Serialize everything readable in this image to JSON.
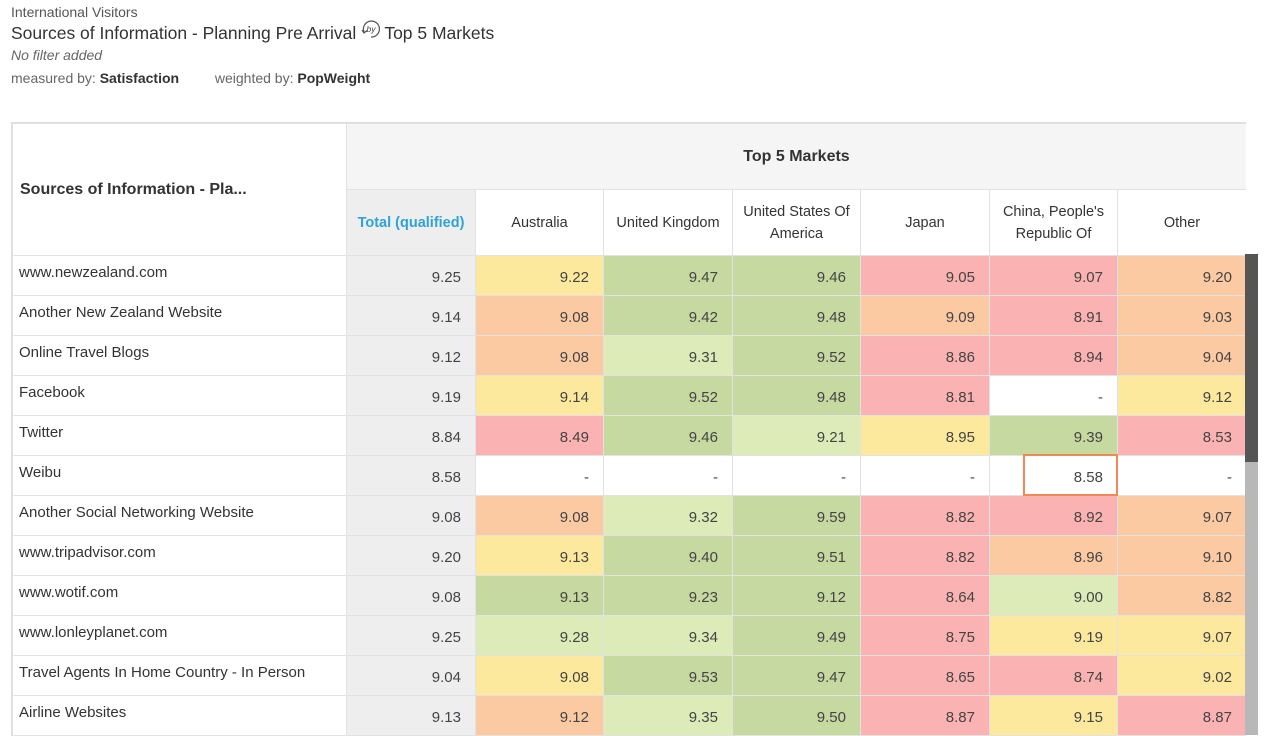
{
  "header": {
    "supertitle": "International Visitors",
    "title_left": "Sources of Information - Planning Pre Arrival",
    "by_icon_text": "by",
    "title_right": "Top 5 Markets",
    "filter": "No filter added",
    "measured_label": "measured by:",
    "measured_value": "Satisfaction",
    "weighted_label": "weighted by:",
    "weighted_value": "PopWeight"
  },
  "table": {
    "row_header": "Sources of Information - Pla...",
    "group_header": "Top 5 Markets",
    "columns": [
      "Total (qualified)",
      "Australia",
      "United Kingdom",
      "United States Of America",
      "Japan",
      "China, People's Republic Of",
      "Other"
    ],
    "rows": [
      {
        "label": "www.newzealand.com",
        "values": [
          "9.25",
          "9.22",
          "9.47",
          "9.46",
          "9.05",
          "9.07",
          "9.20"
        ],
        "colors": [
          "t",
          "y",
          "g",
          "g",
          "r",
          "r",
          "o"
        ]
      },
      {
        "label": "Another New Zealand Website",
        "values": [
          "9.14",
          "9.08",
          "9.42",
          "9.48",
          "9.09",
          "8.91",
          "9.03"
        ],
        "colors": [
          "t",
          "o",
          "g",
          "g",
          "o",
          "r",
          "o"
        ]
      },
      {
        "label": "Online Travel Blogs",
        "values": [
          "9.12",
          "9.08",
          "9.31",
          "9.52",
          "8.86",
          "8.94",
          "9.04"
        ],
        "colors": [
          "t",
          "o",
          "lg",
          "g",
          "r",
          "r",
          "o"
        ]
      },
      {
        "label": "Facebook",
        "values": [
          "9.19",
          "9.14",
          "9.52",
          "9.48",
          "8.81",
          "-",
          "9.12"
        ],
        "colors": [
          "t",
          "y",
          "g",
          "g",
          "r",
          "w",
          "y"
        ]
      },
      {
        "label": "Twitter",
        "values": [
          "8.84",
          "8.49",
          "9.46",
          "9.21",
          "8.95",
          "9.39",
          "8.53"
        ],
        "colors": [
          "t",
          "r",
          "g",
          "lg",
          "y",
          "g",
          "r"
        ]
      },
      {
        "label": "Weibu",
        "values": [
          "8.58",
          "-",
          "-",
          "-",
          "-",
          "8.58",
          "-"
        ],
        "colors": [
          "t",
          "w",
          "w",
          "w",
          "w",
          "w",
          "w"
        ]
      },
      {
        "label": "Another Social Networking Website",
        "values": [
          "9.08",
          "9.08",
          "9.32",
          "9.59",
          "8.82",
          "8.92",
          "9.07"
        ],
        "colors": [
          "t",
          "o",
          "lg",
          "g",
          "r",
          "r",
          "o"
        ]
      },
      {
        "label": "www.tripadvisor.com",
        "values": [
          "9.20",
          "9.13",
          "9.40",
          "9.51",
          "8.82",
          "8.96",
          "9.10"
        ],
        "colors": [
          "t",
          "y",
          "g",
          "g",
          "r",
          "o",
          "o"
        ]
      },
      {
        "label": "www.wotif.com",
        "values": [
          "9.08",
          "9.13",
          "9.23",
          "9.12",
          "8.64",
          "9.00",
          "8.82"
        ],
        "colors": [
          "t",
          "g",
          "g",
          "g",
          "r",
          "lg",
          "o"
        ]
      },
      {
        "label": "www.lonleyplanet.com",
        "values": [
          "9.25",
          "9.28",
          "9.34",
          "9.49",
          "8.75",
          "9.19",
          "9.07"
        ],
        "colors": [
          "t",
          "lg",
          "lg",
          "g",
          "r",
          "y",
          "y"
        ]
      },
      {
        "label": "Travel Agents In Home Country - In Person",
        "values": [
          "9.04",
          "9.08",
          "9.53",
          "9.47",
          "8.65",
          "8.74",
          "9.02"
        ],
        "colors": [
          "t",
          "y",
          "g",
          "g",
          "r",
          "r",
          "y"
        ]
      },
      {
        "label": "Airline Websites",
        "values": [
          "9.13",
          "9.12",
          "9.35",
          "9.50",
          "8.87",
          "9.15",
          "8.87"
        ],
        "colors": [
          "t",
          "o",
          "lg",
          "g",
          "r",
          "y",
          "r"
        ]
      }
    ],
    "highlighted_cell": {
      "row": "Weibu",
      "column": "China, People's Republic Of",
      "value": "8.58",
      "color": "#ef8b52"
    }
  },
  "colors": {
    "green": "#c6d9a0",
    "light_green": "#dcebb7",
    "yellow": "#fde99d",
    "orange": "#fbcaa3",
    "red": "#fbb2b2",
    "total_bg": "#eeeeee",
    "accent": "#2ea3d6"
  }
}
